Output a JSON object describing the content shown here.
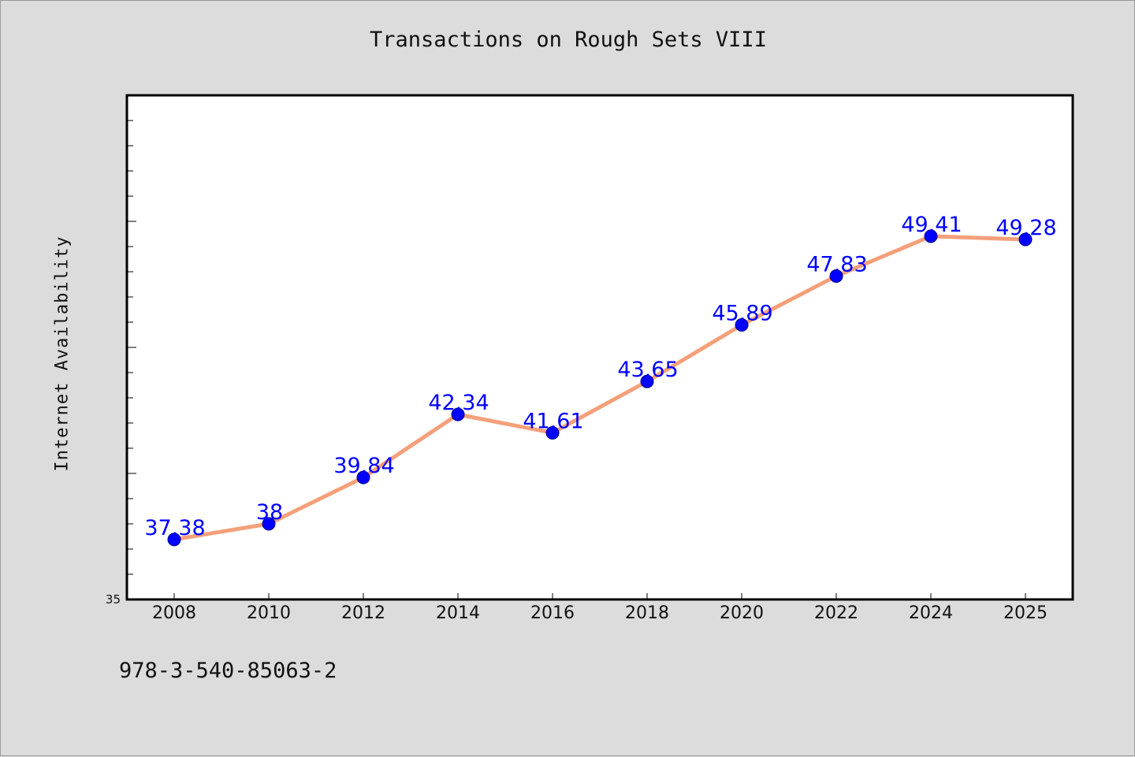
{
  "colors": {
    "background": "#dcdcdc",
    "plot_background": "#ffffff",
    "line": "#f4a07a",
    "marker": "#0000ff",
    "data_label": "#0000ff"
  },
  "footer": {
    "text": "978-3-540-85063-2"
  },
  "chart_data": {
    "type": "line",
    "title": "Transactions on Rough Sets VIII",
    "xlabel": "",
    "ylabel": "Internet Availability",
    "categories": [
      "2008",
      "2010",
      "2012",
      "2014",
      "2016",
      "2018",
      "2020",
      "2022",
      "2024",
      "2025"
    ],
    "series": [
      {
        "values": [
          37.38,
          38,
          39.84,
          42.34,
          41.61,
          43.65,
          45.89,
          47.83,
          49.41,
          49.28
        ],
        "data_labels": [
          "37.38",
          "38",
          "39.84",
          "42.34",
          "41.61",
          "43.65",
          "45.89",
          "47.83",
          "49.41",
          "49.28"
        ]
      }
    ],
    "ylim": [
      35,
      55
    ],
    "yticks_labeled": [
      "35"
    ],
    "grid": false,
    "legend": "none"
  }
}
